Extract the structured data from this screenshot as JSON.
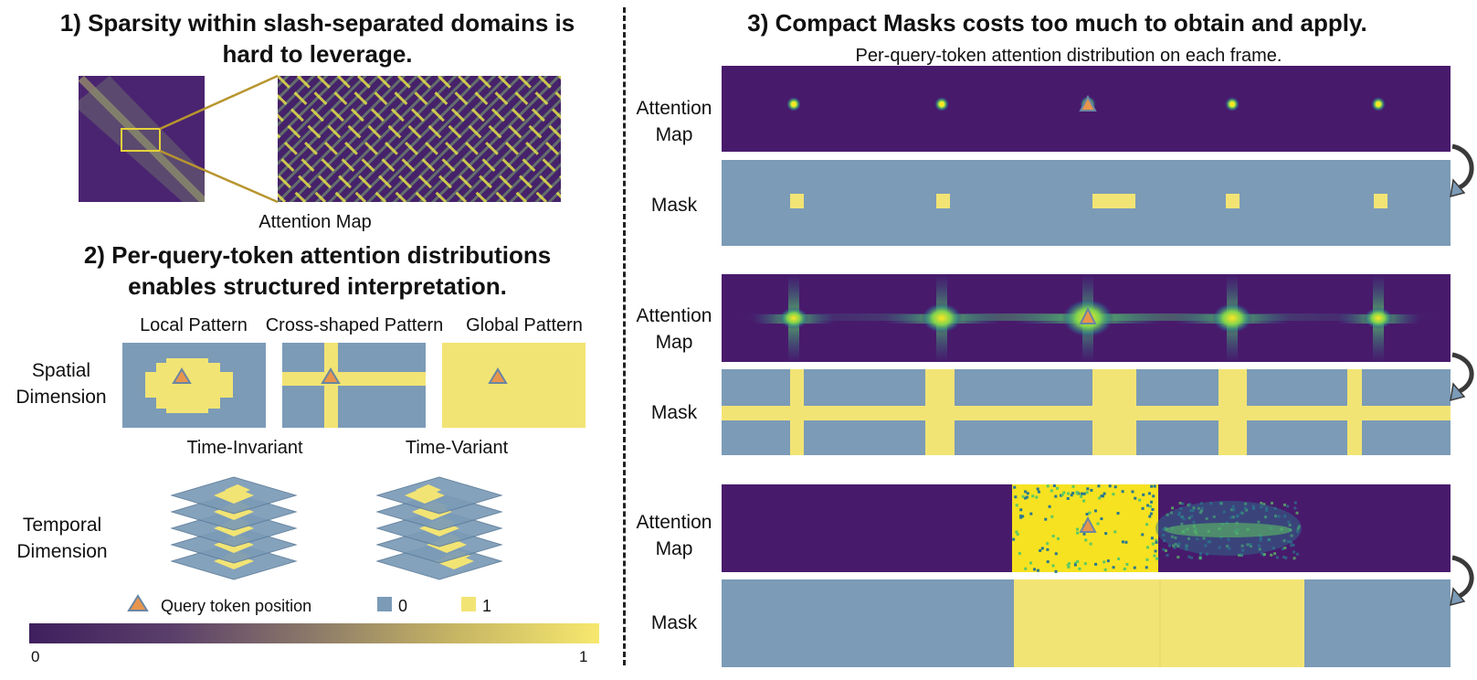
{
  "left": {
    "section1_title_line1": "1) Sparsity within slash-separated domains is",
    "section1_title_line2": "hard to leverage.",
    "attention_map_caption": "Attention Map",
    "section2_title_line1": "2) Per-query-token attention distributions",
    "section2_title_line2": "enables structured interpretation.",
    "patterns": [
      "Local Pattern",
      "Cross-shaped Pattern",
      "Global Pattern"
    ],
    "spatial_label_line1": "Spatial",
    "spatial_label_line2": "Dimension",
    "time_invariant": "Time-Invariant",
    "time_variant": "Time-Variant",
    "temporal_label_line1": "Temporal",
    "temporal_label_line2": "Dimension"
  },
  "legend": {
    "query": "Query token position",
    "zero": "0",
    "one": "1",
    "scale_min": "0",
    "scale_max": "1"
  },
  "right": {
    "section3_title": "3) Compact Masks costs too much to obtain and apply.",
    "subtitle": "Per-query-token attention distribution on each frame.",
    "rows": [
      {
        "attention_line1": "Attention",
        "attention_line2": "Map",
        "mask": "Mask"
      },
      {
        "attention_line1": "Attention",
        "attention_line2": "Map",
        "mask": "Mask"
      },
      {
        "attention_line1": "Attention",
        "attention_line2": "Map",
        "mask": "Mask"
      }
    ]
  },
  "colors": {
    "viridis_dark": "#481a6c",
    "mask_blue": "#7b9bb7",
    "mask_yellow": "#f2e474",
    "attention_yellow": "#fde725",
    "query_orange": "#e8954b",
    "highlight_gold": "#c9a227"
  }
}
